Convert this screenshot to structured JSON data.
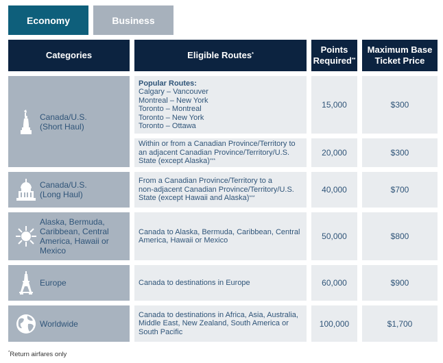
{
  "tabs": {
    "economy": "Economy",
    "business": "Business"
  },
  "headers": {
    "categories": "Categories",
    "routes": "Eligible Routes",
    "routes_mark": "*",
    "points_line1": "Points",
    "points_line2": "Required",
    "points_mark": "**",
    "price_line1": "Maximum Base",
    "price_line2": "Ticket Price"
  },
  "categories": {
    "short_haul": {
      "line1": "Canada/U.S.",
      "line2": "(Short Haul)",
      "icon": "statue-of-liberty-icon"
    },
    "long_haul": {
      "line1": "Canada/U.S.",
      "line2": "(Long Haul)",
      "icon": "capitol-building-icon"
    },
    "south": {
      "line1": "Alaska, Bermuda,",
      "line2": "Caribbean, Central",
      "line3": "America, Hawaii or",
      "line4": "Mexico",
      "icon": "snowflake-sun-icon"
    },
    "europe": {
      "line1": "Europe",
      "icon": "eiffel-tower-icon"
    },
    "worldwide": {
      "line1": "Worldwide",
      "icon": "globe-icon"
    }
  },
  "rows": [
    {
      "route_label": "Popular Routes:",
      "routes": [
        "Calgary – Vancouver",
        "Montreal – New York",
        "Toronto – Montreal",
        "Toronto – New York",
        "Toronto – Ottawa"
      ],
      "points": "15,000",
      "price": "$300"
    },
    {
      "route_lines": [
        "Within or from a Canadian Province/Territory to",
        "an adjacent Canadian Province/Territory/U.S.",
        "State (except Alaska)"
      ],
      "mark": "***",
      "points": "20,000",
      "price": "$300"
    },
    {
      "route_lines": [
        "From a Canadian Province/Territory to a",
        "non-adjacent Canadian Province/Territory/U.S.",
        "State (except Hawaii and Alaska)"
      ],
      "mark": "***",
      "points": "40,000",
      "price": "$700"
    },
    {
      "route_lines": [
        "Canada to Alaska, Bermuda, Caribbean, Central",
        "America, Hawaii or Mexico"
      ],
      "points": "50,000",
      "price": "$800"
    },
    {
      "route_lines": [
        "Canada to destinations in Europe"
      ],
      "points": "60,000",
      "price": "$900"
    },
    {
      "route_lines": [
        "Canada to destinations in Africa, Asia, Australia,",
        "Middle East, New Zealand, South America or",
        "South Pacific"
      ],
      "points": "100,000",
      "price": "$1,700"
    }
  ],
  "footnote": {
    "mark": "*",
    "text": "Return airfares only"
  }
}
